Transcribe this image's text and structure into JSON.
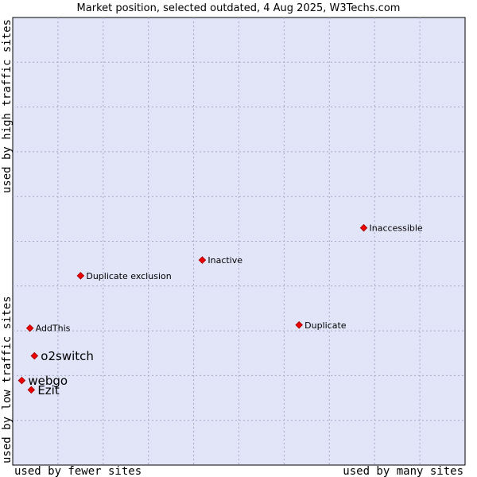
{
  "chart_data": {
    "type": "scatter",
    "title": "Market position, selected outdated, 4 Aug 2025, W3Techs.com",
    "xlabel_low": "used by fewer sites",
    "xlabel_high": "used by many sites",
    "ylabel_low": "used by low traffic sites",
    "ylabel_high": "used by high traffic sites",
    "xlim": [
      0,
      100
    ],
    "ylim": [
      0,
      100
    ],
    "grid": true,
    "points": [
      {
        "label": "Inaccessible",
        "x": 77.6,
        "y": 53.0,
        "size": "small"
      },
      {
        "label": "Inactive",
        "x": 41.9,
        "y": 45.8,
        "size": "small"
      },
      {
        "label": "Duplicate exclusion",
        "x": 15.0,
        "y": 42.3,
        "size": "small"
      },
      {
        "label": "AddThis",
        "x": 3.8,
        "y": 30.6,
        "size": "small"
      },
      {
        "label": "Duplicate",
        "x": 63.3,
        "y": 31.3,
        "size": "small"
      },
      {
        "label": "o2switch",
        "x": 4.8,
        "y": 24.4,
        "size": "large"
      },
      {
        "label": "webgo",
        "x": 2.0,
        "y": 18.9,
        "size": "large"
      },
      {
        "label": "Ezit",
        "x": 4.1,
        "y": 16.8,
        "size": "large"
      }
    ]
  }
}
